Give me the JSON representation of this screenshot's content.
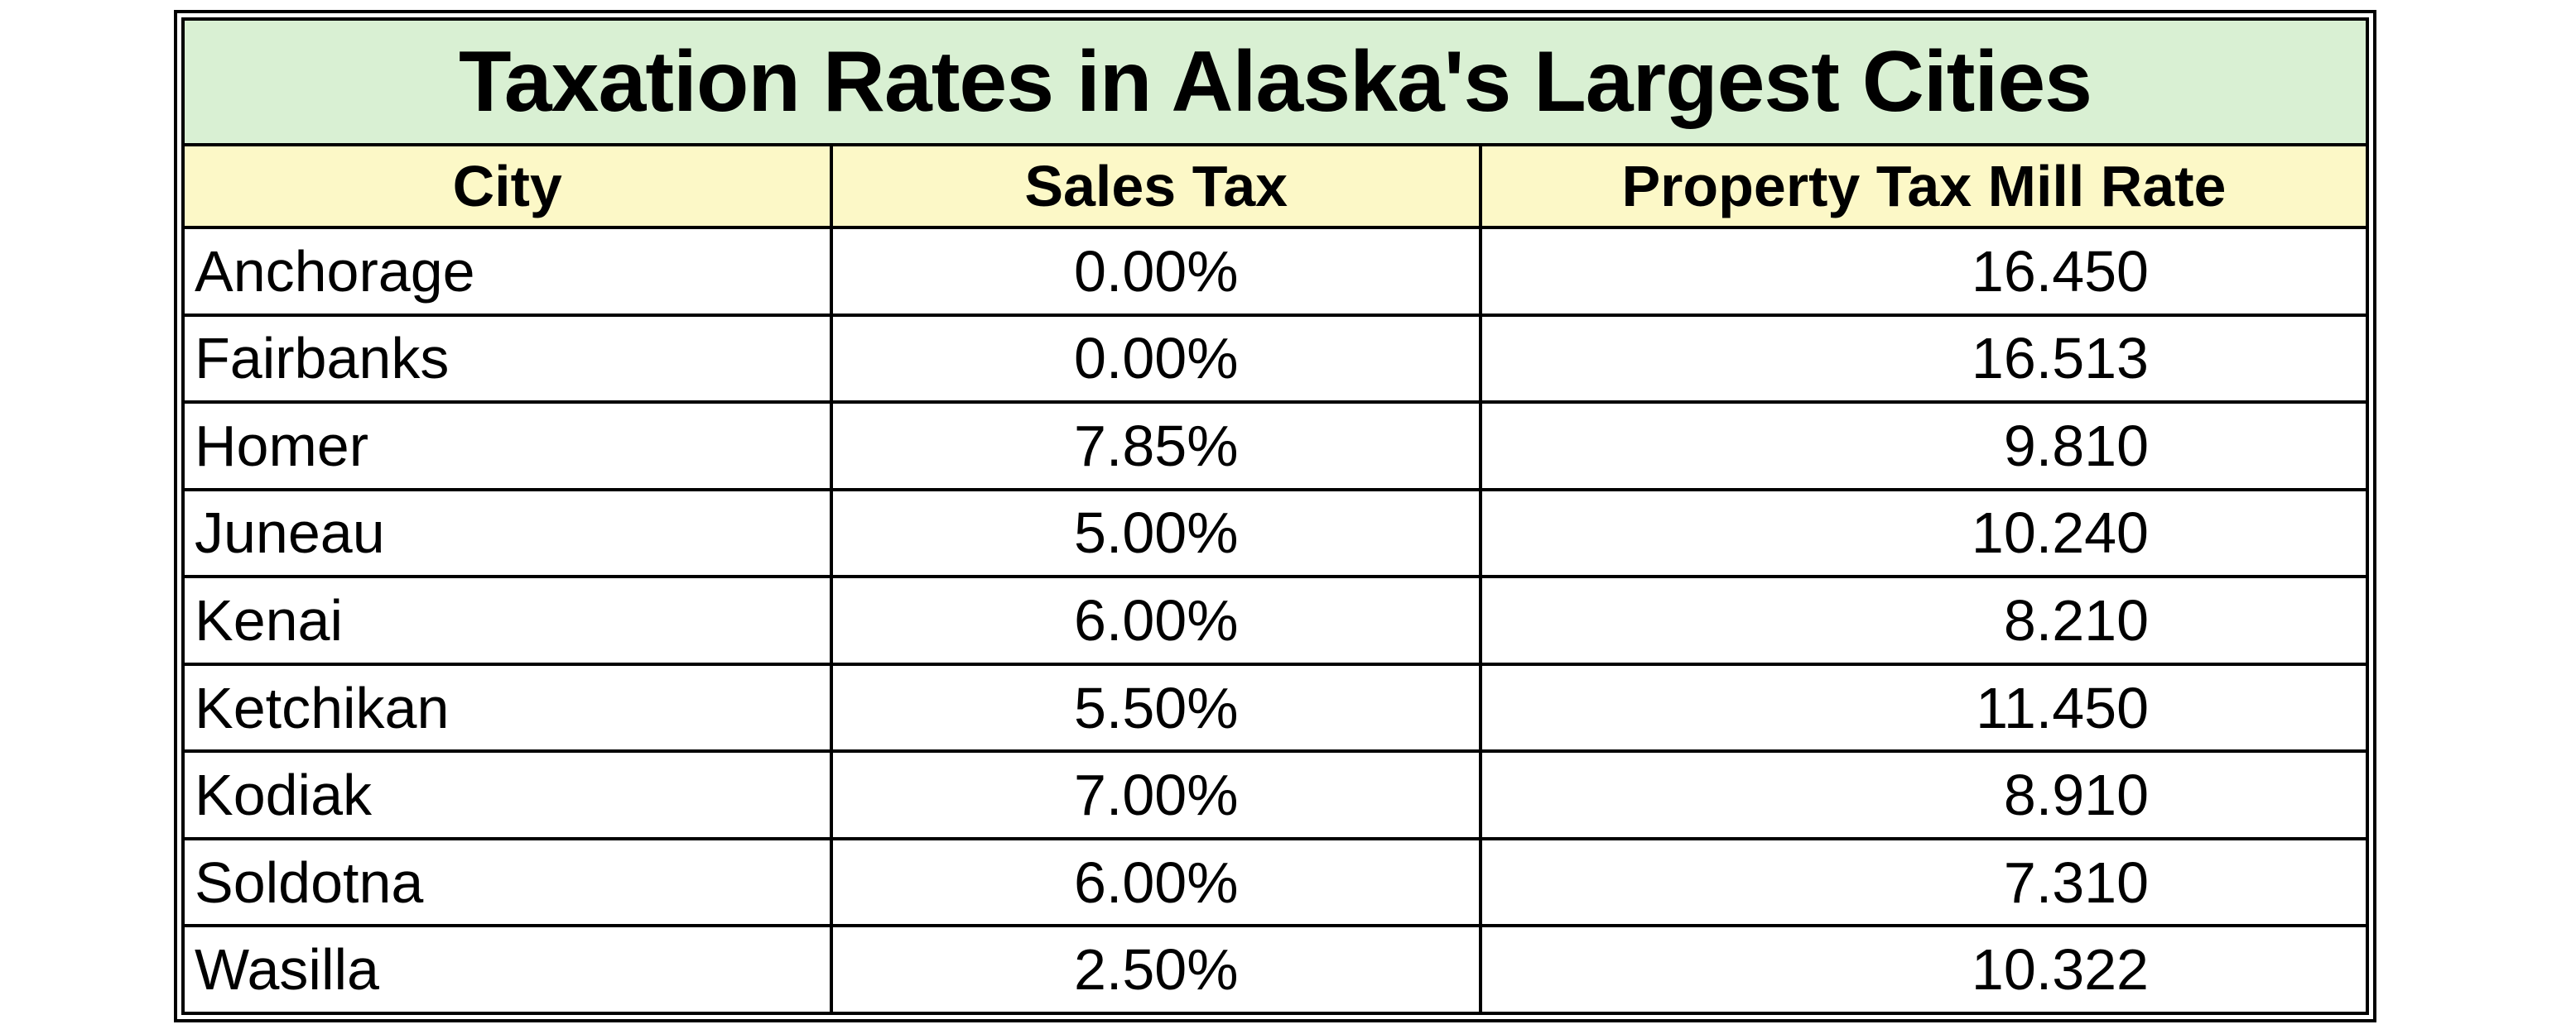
{
  "title": "Taxation Rates in Alaska's Largest Cities",
  "columns": [
    "City",
    "Sales Tax",
    "Property Tax Mill Rate"
  ],
  "rows": [
    {
      "city": "Anchorage",
      "sales_tax": "0.00%",
      "mill_rate": "16.450"
    },
    {
      "city": "Fairbanks",
      "sales_tax": "0.00%",
      "mill_rate": "16.513"
    },
    {
      "city": "Homer",
      "sales_tax": "7.85%",
      "mill_rate": "9.810"
    },
    {
      "city": "Juneau",
      "sales_tax": "5.00%",
      "mill_rate": "10.240"
    },
    {
      "city": "Kenai",
      "sales_tax": "6.00%",
      "mill_rate": "8.210"
    },
    {
      "city": "Ketchikan",
      "sales_tax": "5.50%",
      "mill_rate": "11.450"
    },
    {
      "city": "Kodiak",
      "sales_tax": "7.00%",
      "mill_rate": "8.910"
    },
    {
      "city": "Soldotna",
      "sales_tax": "6.00%",
      "mill_rate": "7.310"
    },
    {
      "city": "Wasilla",
      "sales_tax": "2.50%",
      "mill_rate": "10.322"
    }
  ],
  "colors": {
    "title_bg": "#d9f0d3",
    "header_bg": "#fcf8c7",
    "border": "#000000"
  }
}
